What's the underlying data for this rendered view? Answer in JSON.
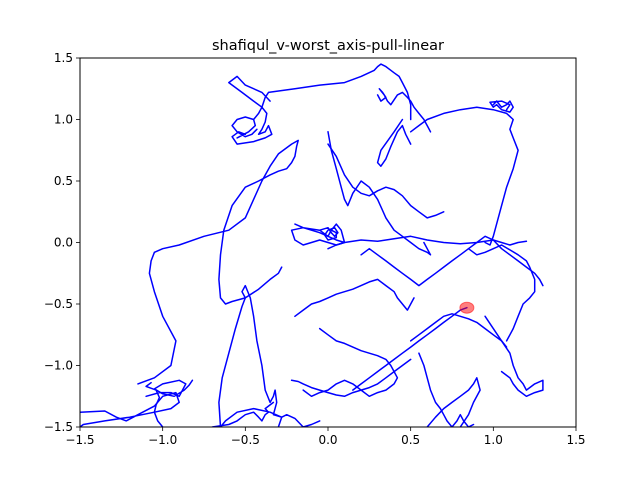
{
  "chart_data": {
    "type": "line",
    "title": "shafiqul_v-worst_axis-pull-linear",
    "xlabel": "",
    "ylabel": "",
    "xlim": [
      -1.5,
      1.5
    ],
    "ylim": [
      -1.5,
      1.5
    ],
    "xticks": [
      -1.5,
      -1.0,
      -0.5,
      0.0,
      0.5,
      1.0,
      1.5
    ],
    "xtick_labels": [
      "−1.5",
      "−1.0",
      "−0.5",
      "0.0",
      "0.5",
      "1.0",
      "1.5"
    ],
    "yticks": [
      -1.5,
      -1.0,
      -0.5,
      0.0,
      0.5,
      1.0,
      1.5
    ],
    "ytick_labels": [
      "−1.5",
      "−1.0",
      "−0.5",
      "0.0",
      "0.5",
      "1.0",
      "1.5"
    ],
    "grid": false,
    "series": [
      {
        "color": "#0000ff",
        "x": [
          -1.5,
          -1.35,
          -1.28,
          -1.22,
          -1.15,
          -1.05,
          -1.0,
          -0.92,
          -0.9,
          -0.95,
          -1.05,
          -1.2,
          -1.35,
          -1.48,
          -1.5
        ],
        "y": [
          -1.38,
          -1.37,
          -1.42,
          -1.45,
          -1.4,
          -1.33,
          -1.25,
          -1.22,
          -1.3,
          -1.35,
          -1.38,
          -1.42,
          -1.45,
          -1.48,
          -1.5
        ]
      },
      {
        "color": "#0000ff",
        "x": [
          -1.1,
          -1.02,
          -0.95,
          -0.9,
          -0.88,
          -0.86,
          -0.9,
          -1.0,
          -1.05,
          -1.0,
          -0.93,
          -0.87,
          -0.84,
          -0.82
        ],
        "y": [
          -1.25,
          -1.22,
          -1.22,
          -1.25,
          -1.2,
          -1.15,
          -1.12,
          -1.15,
          -1.19,
          -1.23,
          -1.25,
          -1.2,
          -1.16,
          -1.12
        ]
      },
      {
        "color": "#0000ff",
        "x": [
          -1.0,
          -1.03,
          -1.05,
          -1.04,
          -1.02,
          -1.04,
          -1.1,
          -1.07
        ],
        "y": [
          -1.5,
          -1.45,
          -1.38,
          -1.32,
          -1.26,
          -1.2,
          -1.17,
          -1.14
        ]
      },
      {
        "color": "#0000ff",
        "x": [
          -0.7,
          -0.6,
          -0.55,
          -0.5,
          -0.45,
          -0.42,
          -0.4,
          -0.38,
          -0.36,
          -0.38,
          -0.35,
          -0.33
        ],
        "y": [
          -1.5,
          -1.48,
          -1.45,
          -1.4,
          -1.38,
          -1.42,
          -1.45,
          -1.4,
          -1.38,
          -1.35,
          -1.32,
          -1.3
        ]
      },
      {
        "color": "#0000ff",
        "x": [
          -0.3,
          -0.28,
          -0.35,
          -0.45,
          -0.55,
          -0.62,
          -0.65,
          -0.66,
          -0.64,
          -0.6,
          -0.56,
          -0.52,
          -0.5,
          -0.52,
          -0.5,
          -0.47,
          -0.45,
          -0.43,
          -0.4,
          -0.38,
          -0.35,
          -0.33,
          -0.32,
          -0.31,
          -0.33,
          -0.28,
          -0.25,
          -0.2,
          -0.15,
          -0.1,
          -0.05
        ],
        "y": [
          -1.5,
          -1.42,
          -1.38,
          -1.35,
          -1.38,
          -1.45,
          -1.5,
          -1.3,
          -1.1,
          -0.9,
          -0.7,
          -0.52,
          -0.45,
          -0.4,
          -0.35,
          -0.45,
          -0.6,
          -0.8,
          -1.0,
          -1.2,
          -1.3,
          -1.25,
          -1.2,
          -1.3,
          -1.4,
          -1.42,
          -1.4,
          -1.43,
          -1.5,
          -1.48,
          -1.45
        ]
      },
      {
        "color": "#0000ff",
        "x": [
          -1.15,
          -1.05,
          -0.95,
          -0.92,
          -1.0,
          -1.05,
          -1.08,
          -1.07,
          -1.05,
          -1.0,
          -0.9,
          -0.75,
          -0.6,
          -0.5,
          -0.45,
          -0.4,
          -0.35,
          -0.3,
          -0.22,
          -0.18,
          -0.19,
          -0.2,
          -0.22,
          -0.25,
          -0.3,
          -0.35,
          -0.42,
          -0.5,
          -0.58,
          -0.63,
          -0.65,
          -0.66,
          -0.65,
          -0.62,
          -0.58,
          -0.5,
          -0.42,
          -0.35,
          -0.3,
          -0.28
        ],
        "y": [
          -1.15,
          -1.1,
          -1.0,
          -0.8,
          -0.6,
          -0.4,
          -0.25,
          -0.15,
          -0.08,
          -0.05,
          -0.02,
          0.05,
          0.1,
          0.2,
          0.35,
          0.5,
          0.62,
          0.72,
          0.8,
          0.83,
          0.78,
          0.7,
          0.65,
          0.6,
          0.58,
          0.55,
          0.5,
          0.45,
          0.3,
          0.1,
          -0.1,
          -0.3,
          -0.45,
          -0.5,
          -0.48,
          -0.45,
          -0.38,
          -0.3,
          -0.25,
          -0.2
        ]
      },
      {
        "color": "#0000ff",
        "x": [
          -0.55,
          -0.48,
          -0.44,
          -0.45,
          -0.5,
          -0.55,
          -0.58,
          -0.55,
          -0.5,
          -0.46,
          -0.43
        ],
        "y": [
          0.85,
          0.9,
          0.95,
          1.0,
          1.02,
          1.0,
          0.95,
          0.9,
          0.86,
          0.88,
          0.92
        ]
      },
      {
        "color": "#0000ff",
        "x": [
          -0.45,
          -0.42,
          -0.4,
          -0.37,
          -0.38,
          -0.4,
          -0.42,
          -0.38,
          -0.36,
          -0.34,
          -0.38,
          -0.45,
          -0.55,
          -0.58,
          -0.54,
          -0.5
        ],
        "y": [
          1.0,
          1.05,
          1.1,
          1.05,
          0.98,
          0.92,
          0.88,
          0.9,
          0.95,
          0.88,
          0.85,
          0.82,
          0.8,
          0.86,
          0.9,
          0.88
        ]
      },
      {
        "color": "#0000ff",
        "x": [
          -0.35,
          -0.4,
          -0.5,
          -0.55,
          -0.6,
          -0.52,
          -0.45,
          -0.4,
          -0.38,
          -0.36,
          -0.2,
          -0.05,
          0.1,
          0.2,
          0.28,
          0.3,
          0.32,
          0.35,
          0.38,
          0.4,
          0.43,
          0.45,
          0.48,
          0.5,
          0.5
        ],
        "y": [
          1.15,
          1.22,
          1.28,
          1.35,
          1.3,
          1.22,
          1.15,
          1.1,
          1.18,
          1.22,
          1.25,
          1.28,
          1.3,
          1.35,
          1.4,
          1.43,
          1.45,
          1.43,
          1.4,
          1.38,
          1.35,
          1.3,
          1.22,
          1.12,
          1.0
        ]
      },
      {
        "color": "#0000ff",
        "x": [
          0.3,
          0.32,
          0.35,
          0.33,
          0.31,
          0.34,
          0.36,
          0.38,
          0.4,
          0.42,
          0.45,
          0.48,
          0.5,
          0.52,
          0.55,
          0.58,
          0.6,
          0.62
        ],
        "y": [
          1.2,
          1.15,
          1.18,
          1.22,
          1.25,
          1.2,
          1.15,
          1.12,
          1.16,
          1.2,
          1.22,
          1.18,
          1.15,
          1.1,
          1.05,
          1.0,
          0.95,
          0.9
        ]
      },
      {
        "color": "#0000ff",
        "x": [
          0.45,
          0.4,
          0.32,
          0.3,
          0.32,
          0.35,
          0.38,
          0.42,
          0.45,
          0.47,
          0.5
        ],
        "y": [
          1.0,
          0.9,
          0.75,
          0.65,
          0.62,
          0.68,
          0.78,
          0.9,
          0.95,
          0.88,
          0.8
        ]
      },
      {
        "color": "#0000ff",
        "x": [
          0.5,
          0.55,
          0.6,
          0.7,
          0.8,
          0.9,
          1.0,
          1.08,
          1.12,
          1.1,
          1.12,
          1.15,
          1.12,
          1.08,
          1.05,
          1.02,
          1.0,
          0.98,
          0.95
        ],
        "y": [
          0.9,
          0.95,
          1.0,
          1.05,
          1.08,
          1.1,
          1.08,
          1.05,
          1.0,
          0.92,
          0.85,
          0.75,
          0.6,
          0.45,
          0.3,
          0.15,
          0.05,
          -0.02,
          0.0
        ]
      },
      {
        "color": "#0000ff",
        "x": [
          1.0,
          1.02,
          1.05,
          1.08,
          1.1,
          1.12,
          1.1,
          1.05,
          1.02,
          1.0,
          0.98,
          1.05,
          1.1,
          1.08
        ],
        "y": [
          1.12,
          1.15,
          1.1,
          1.12,
          1.15,
          1.1,
          1.06,
          1.08,
          1.12,
          1.1,
          1.14,
          1.15,
          1.12,
          1.08
        ]
      },
      {
        "color": "#0000ff",
        "x": [
          -0.2,
          -0.15,
          -0.1,
          -0.05,
          0.0,
          0.02,
          0.05,
          0.08,
          0.1,
          0.05,
          0.0,
          -0.05,
          -0.1,
          -0.15,
          -0.2,
          -0.22,
          -0.15,
          -0.05,
          0.0,
          0.05,
          0.1
        ],
        "y": [
          0.15,
          0.12,
          0.1,
          0.08,
          0.05,
          0.1,
          0.15,
          0.1,
          0.0,
          -0.02,
          0.0,
          0.02,
          0.0,
          -0.02,
          0.02,
          0.1,
          0.12,
          0.1,
          0.05,
          0.02,
          0.0
        ]
      },
      {
        "color": "#0000ff",
        "x": [
          -0.05,
          0.0,
          0.02,
          0.04,
          0.06,
          0.04,
          0.0,
          -0.02,
          0.0,
          0.05,
          0.05,
          0.02
        ],
        "y": [
          0.1,
          0.12,
          0.08,
          0.05,
          0.08,
          0.12,
          0.1,
          0.06,
          0.02,
          0.04,
          0.08,
          0.1
        ]
      },
      {
        "color": "#0000ff",
        "x": [
          0.0,
          0.05,
          0.1,
          0.2,
          0.3,
          0.4,
          0.5,
          0.6,
          0.7,
          0.8,
          0.9,
          1.0,
          1.05,
          1.1,
          1.15,
          1.2
        ],
        "y": [
          -0.05,
          -0.02,
          0.0,
          0.02,
          0.01,
          0.03,
          0.05,
          0.02,
          0.0,
          -0.01,
          0.0,
          0.02,
          0.0,
          -0.02,
          0.0,
          0.01
        ]
      },
      {
        "color": "#0000ff",
        "x": [
          0.0,
          0.02,
          0.05,
          0.08,
          0.1,
          0.12,
          0.15,
          0.2,
          0.25,
          0.3,
          0.35,
          0.4,
          0.45,
          0.5,
          0.55,
          0.6,
          0.62,
          0.6,
          0.58
        ],
        "y": [
          0.9,
          0.75,
          0.6,
          0.45,
          0.35,
          0.3,
          0.4,
          0.5,
          0.45,
          0.35,
          0.2,
          0.1,
          0.05,
          0.0,
          -0.05,
          -0.08,
          -0.1,
          -0.05,
          0.0
        ]
      },
      {
        "color": "#0000ff",
        "x": [
          0.0,
          0.05,
          0.1,
          0.15,
          0.2,
          0.25,
          0.3,
          0.35,
          0.4,
          0.45,
          0.5,
          0.55,
          0.6,
          0.65,
          0.7
        ],
        "y": [
          0.8,
          0.7,
          0.55,
          0.45,
          0.4,
          0.38,
          0.42,
          0.45,
          0.43,
          0.38,
          0.3,
          0.25,
          0.2,
          0.22,
          0.25
        ]
      },
      {
        "color": "#0000ff",
        "x": [
          0.2,
          0.25,
          0.3,
          0.35,
          0.4,
          0.45,
          0.5,
          0.55,
          0.6,
          0.65,
          0.7,
          0.75,
          0.8,
          0.85,
          0.9,
          0.95,
          1.0,
          1.05,
          1.1,
          1.15,
          1.2,
          1.25,
          1.28,
          1.3
        ],
        "y": [
          -0.1,
          -0.05,
          -0.1,
          -0.15,
          -0.2,
          -0.25,
          -0.3,
          -0.35,
          -0.3,
          -0.25,
          -0.2,
          -0.15,
          -0.1,
          -0.05,
          0.0,
          0.05,
          0.02,
          -0.05,
          -0.1,
          -0.15,
          -0.2,
          -0.25,
          -0.3,
          -0.35
        ]
      },
      {
        "color": "#0000ff",
        "x": [
          0.85,
          0.9,
          0.95,
          1.0,
          1.05,
          1.1,
          1.15,
          1.2,
          1.22,
          1.25,
          1.25,
          1.22,
          1.18,
          1.15,
          1.12,
          1.1,
          1.08
        ],
        "y": [
          -0.05,
          -0.1,
          -0.08,
          -0.05,
          -0.02,
          -0.06,
          -0.1,
          -0.15,
          -0.2,
          -0.3,
          -0.4,
          -0.45,
          -0.5,
          -0.6,
          -0.7,
          -0.75,
          -0.8
        ]
      },
      {
        "color": "#0000ff",
        "x": [
          0.95,
          1.0,
          1.05,
          1.1,
          1.12,
          1.15,
          1.18,
          1.2,
          1.25,
          1.3,
          1.3,
          1.25,
          1.2,
          1.15,
          1.12,
          1.1,
          1.05
        ],
        "y": [
          -0.6,
          -0.7,
          -0.8,
          -0.9,
          -1.0,
          -1.1,
          -1.15,
          -1.2,
          -1.15,
          -1.12,
          -1.2,
          -1.22,
          -1.25,
          -1.2,
          -1.15,
          -1.1,
          -1.05
        ]
      },
      {
        "color": "#0000ff",
        "x": [
          -0.2,
          -0.15,
          -0.1,
          -0.05,
          0.0,
          0.05,
          0.1,
          0.15,
          0.2,
          0.25,
          0.3,
          0.35,
          0.4,
          0.42,
          0.45,
          0.48,
          0.5,
          0.52
        ],
        "y": [
          -0.6,
          -0.55,
          -0.5,
          -0.48,
          -0.45,
          -0.42,
          -0.4,
          -0.38,
          -0.35,
          -0.32,
          -0.3,
          -0.35,
          -0.4,
          -0.45,
          -0.5,
          -0.55,
          -0.5,
          -0.45
        ]
      },
      {
        "color": "#0000ff",
        "x": [
          -0.05,
          0.0,
          0.05,
          0.1,
          0.15,
          0.2,
          0.25,
          0.3,
          0.35,
          0.38,
          0.4,
          0.42,
          0.4,
          0.35,
          0.3,
          0.25,
          0.2,
          0.15,
          0.1,
          0.05,
          0.0,
          -0.05,
          -0.1,
          -0.15
        ],
        "y": [
          -0.7,
          -0.75,
          -0.8,
          -0.82,
          -0.85,
          -0.88,
          -0.9,
          -0.92,
          -0.95,
          -1.0,
          -1.05,
          -1.1,
          -1.15,
          -1.2,
          -1.22,
          -1.25,
          -1.2,
          -1.15,
          -1.12,
          -1.15,
          -1.2,
          -1.22,
          -1.25,
          -1.2
        ]
      },
      {
        "color": "#0000ff",
        "x": [
          0.5,
          0.55,
          0.6,
          0.65,
          0.7,
          0.75,
          0.8,
          0.85,
          0.9,
          0.95,
          1.0,
          1.05,
          1.08
        ],
        "y": [
          -0.8,
          -0.75,
          -0.7,
          -0.65,
          -0.6,
          -0.58,
          -0.6,
          -0.62,
          -0.65,
          -0.7,
          -0.75,
          -0.8,
          -0.85
        ]
      },
      {
        "color": "#0000ff",
        "x": [
          0.55,
          0.58,
          0.6,
          0.62,
          0.65,
          0.68,
          0.7,
          0.72,
          0.75,
          0.78,
          0.8,
          0.82,
          0.85,
          0.88
        ],
        "y": [
          -0.9,
          -1.0,
          -1.1,
          -1.2,
          -1.3,
          -1.35,
          -1.4,
          -1.45,
          -1.5,
          -1.45,
          -1.4,
          -1.45,
          -1.5,
          -1.48
        ]
      },
      {
        "color": "#0000ff",
        "x": [
          0.6,
          0.65,
          0.7,
          0.75,
          0.8,
          0.85,
          0.88,
          0.9,
          0.92,
          0.88,
          0.85,
          0.8
        ],
        "y": [
          -1.5,
          -1.42,
          -1.35,
          -1.3,
          -1.25,
          -1.2,
          -1.15,
          -1.1,
          -1.2,
          -1.3,
          -1.4,
          -1.5
        ]
      },
      {
        "color": "#0000ff",
        "x": [
          -0.22,
          -0.18,
          -0.15,
          -0.1,
          -0.05,
          0.0,
          0.05,
          0.1,
          0.15,
          0.2,
          0.25,
          0.3,
          0.35,
          0.4,
          0.45,
          0.5
        ],
        "y": [
          -1.12,
          -1.13,
          -1.15,
          -1.18,
          -1.2,
          -1.22,
          -1.24,
          -1.25,
          -1.22,
          -1.2,
          -1.18,
          -1.15,
          -1.1,
          -1.05,
          -1.0,
          -0.95
        ]
      },
      {
        "color": "#0000ff",
        "x": [
          0.15,
          0.2,
          0.25,
          0.3,
          0.35,
          0.4,
          0.45,
          0.5,
          0.55,
          0.6,
          0.65,
          0.7,
          0.75,
          0.8,
          0.84
        ],
        "y": [
          -1.2,
          -1.15,
          -1.1,
          -1.05,
          -1.0,
          -0.95,
          -0.9,
          -0.85,
          -0.8,
          -0.75,
          -0.7,
          -0.65,
          -0.6,
          -0.55,
          -0.53
        ]
      }
    ],
    "marker": {
      "x": 0.84,
      "y": -0.53,
      "color": "#ff0000",
      "alpha": 0.5
    }
  }
}
